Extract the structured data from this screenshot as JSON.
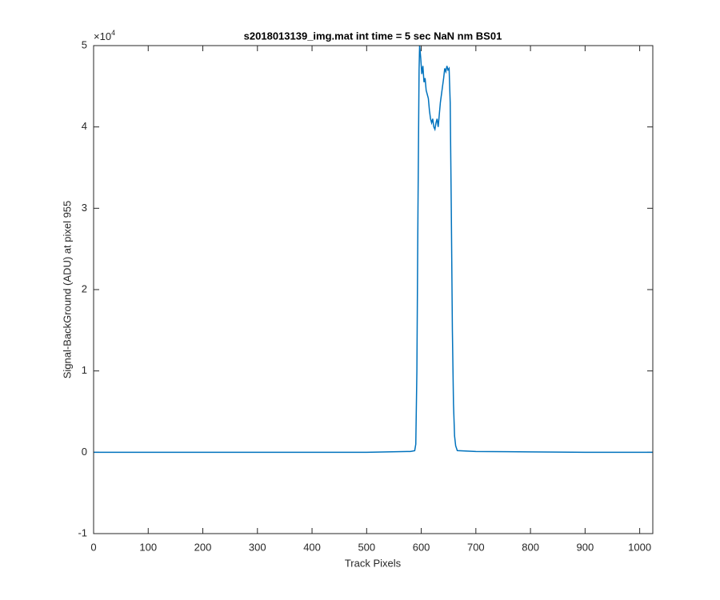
{
  "chart_data": {
    "type": "line",
    "title": "s2018013139_img.mat int time = 5 sec  NaN nm BS01",
    "x_label": "Track Pixels",
    "y_label": "Signal-BackGround (ADU) at pixel 955",
    "y_multiplier": {
      "base": "×10",
      "exponent": "4"
    },
    "xlim": [
      0,
      1024
    ],
    "ylim": [
      -1,
      5
    ],
    "xticks": [
      0,
      100,
      200,
      300,
      400,
      500,
      600,
      700,
      800,
      900,
      1000
    ],
    "yticks": [
      -1,
      0,
      1,
      2,
      3,
      4,
      5
    ],
    "grid": false,
    "series": [
      {
        "color": "#0072bd",
        "x": [
          0,
          100,
          200,
          300,
          400,
          500,
          580,
          588,
          590,
          592,
          594,
          596,
          597,
          599,
          601,
          603,
          605,
          607,
          609,
          611,
          613,
          615,
          617,
          619,
          621,
          623,
          625,
          627,
          629,
          631,
          633,
          635,
          637,
          639,
          641,
          643,
          645,
          647,
          649,
          651,
          653,
          655,
          657,
          659,
          661,
          663,
          666,
          700,
          800,
          900,
          1024
        ],
        "values": [
          0.0,
          0.0,
          0.0,
          0.0,
          0.0,
          0.0,
          0.01,
          0.02,
          0.1,
          1.0,
          3.0,
          4.7,
          5.0,
          4.85,
          4.65,
          4.75,
          4.55,
          4.6,
          4.45,
          4.4,
          4.35,
          4.2,
          4.1,
          4.05,
          4.1,
          4.0,
          3.97,
          4.05,
          4.1,
          4.0,
          4.15,
          4.3,
          4.4,
          4.5,
          4.6,
          4.72,
          4.68,
          4.75,
          4.7,
          4.72,
          4.3,
          3.0,
          1.5,
          0.6,
          0.2,
          0.08,
          0.02,
          0.01,
          0.005,
          0.0,
          0.0
        ]
      }
    ]
  }
}
